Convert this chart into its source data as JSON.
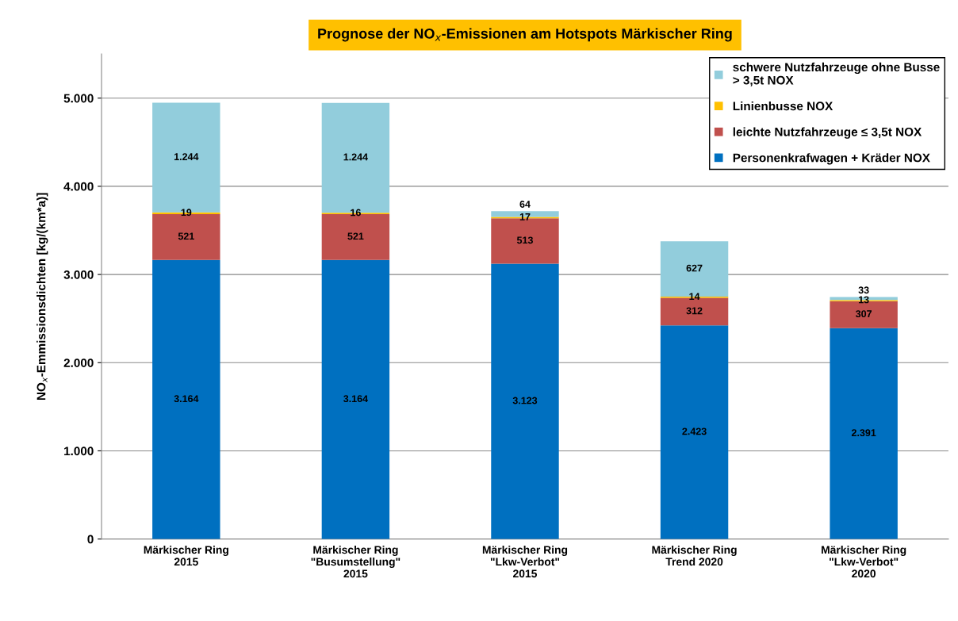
{
  "chart_data": {
    "type": "bar",
    "stacked": true,
    "title": "Prognose der NO$_{x}$-Emissionen am Hotspots Märkischer Ring",
    "ylabel": "NO$_{x}$-Emmissionsdichten [kg/(km*a)]",
    "categories": [
      "Märkischer Ring\n2015",
      "Märkischer Ring\n\"Busumstellung\"\n2015",
      "Märkischer Ring\n\"Lkw-Verbot\"\n2015",
      "Märkischer Ring\nTrend 2020",
      "Märkischer Ring\n\"Lkw-Verbot\"\n2020"
    ],
    "series": [
      {
        "name": "Personenkrafwagen + Kräder NOX",
        "color": "#0070c0",
        "values": [
          3164,
          3164,
          3123,
          2423,
          2391
        ],
        "value_labels": [
          "3.164",
          "3.164",
          "3.123",
          "2.423",
          "2.391"
        ]
      },
      {
        "name": "leichte Nutzfahrzeuge ≤ 3,5t NOX",
        "color": "#c0504d",
        "values": [
          521,
          521,
          513,
          312,
          307
        ],
        "value_labels": [
          "521",
          "521",
          "513",
          "312",
          "307"
        ]
      },
      {
        "name": "Linienbusse NOX",
        "color": "#ffc000",
        "values": [
          19,
          16,
          17,
          14,
          13
        ],
        "value_labels": [
          "19",
          "16",
          "17",
          "14",
          "13"
        ]
      },
      {
        "name": "schwere Nutzfahrzeuge ohne Busse\n> 3,5t NOX",
        "color": "#92cddc",
        "values": [
          1244,
          1244,
          64,
          627,
          33
        ],
        "value_labels": [
          "1.244",
          "1.244",
          "64",
          "627",
          "33"
        ]
      }
    ],
    "ylim": [
      0,
      5500
    ],
    "yticks": [
      {
        "value": 0,
        "label": "0"
      },
      {
        "value": 1000,
        "label": "1.000"
      },
      {
        "value": 2000,
        "label": "2.000"
      },
      {
        "value": 3000,
        "label": "3.000"
      },
      {
        "value": 4000,
        "label": "4.000"
      },
      {
        "value": 5000,
        "label": "5.000"
      }
    ],
    "grid": "y",
    "legend": "top right"
  }
}
